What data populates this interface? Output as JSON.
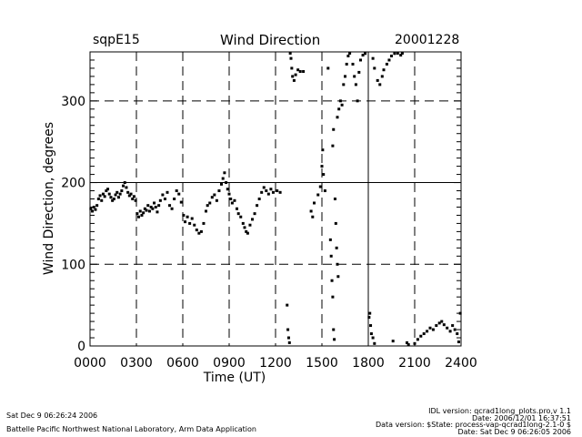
{
  "header": {
    "site": "sqpE15",
    "date": "20001228"
  },
  "chart_data": {
    "type": "scatter",
    "title": "Wind Direction",
    "xlabel": "Time (UT)",
    "ylabel": "Wind Direction, degrees",
    "xlim": [
      0,
      24
    ],
    "ylim": [
      0,
      360
    ],
    "x_ticks": [
      0,
      3,
      6,
      9,
      12,
      15,
      18,
      21,
      24
    ],
    "x_tick_labels": [
      "0000",
      "0300",
      "0600",
      "0900",
      "1200",
      "1500",
      "1800",
      "2100",
      "2400"
    ],
    "y_ticks": [
      0,
      100,
      200,
      300
    ],
    "y_tick_labels": [
      "0",
      "100",
      "200",
      "300"
    ],
    "y_minor_tick_step": 10,
    "grid": {
      "vertical_dashed": [
        3,
        6,
        9,
        12,
        15,
        21
      ],
      "vertical_solid": [
        18
      ],
      "horizontal_dashed": [
        100,
        300
      ],
      "horizontal_solid": [
        200
      ]
    },
    "marker_color": "#000000",
    "points": [
      [
        0.05,
        168
      ],
      [
        0.15,
        165
      ],
      [
        0.25,
        170
      ],
      [
        0.35,
        167
      ],
      [
        0.45,
        172
      ],
      [
        0.55,
        180
      ],
      [
        0.65,
        184
      ],
      [
        0.75,
        178
      ],
      [
        0.85,
        186
      ],
      [
        0.95,
        183
      ],
      [
        1.05,
        190
      ],
      [
        1.15,
        192
      ],
      [
        1.25,
        186
      ],
      [
        1.35,
        182
      ],
      [
        1.45,
        178
      ],
      [
        1.55,
        180
      ],
      [
        1.65,
        185
      ],
      [
        1.75,
        188
      ],
      [
        1.85,
        182
      ],
      [
        1.95,
        186
      ],
      [
        2.05,
        190
      ],
      [
        2.15,
        196
      ],
      [
        2.25,
        200
      ],
      [
        2.35,
        194
      ],
      [
        2.45,
        188
      ],
      [
        2.55,
        184
      ],
      [
        2.65,
        186
      ],
      [
        2.75,
        180
      ],
      [
        2.85,
        183
      ],
      [
        2.95,
        178
      ],
      [
        3.05,
        162
      ],
      [
        3.15,
        158
      ],
      [
        3.25,
        165
      ],
      [
        3.35,
        160
      ],
      [
        3.45,
        163
      ],
      [
        3.55,
        168
      ],
      [
        3.65,
        166
      ],
      [
        3.75,
        172
      ],
      [
        3.85,
        165
      ],
      [
        3.95,
        170
      ],
      [
        4.05,
        168
      ],
      [
        4.15,
        175
      ],
      [
        4.25,
        170
      ],
      [
        4.35,
        164
      ],
      [
        4.45,
        172
      ],
      [
        4.55,
        178
      ],
      [
        4.7,
        185
      ],
      [
        4.85,
        180
      ],
      [
        5.0,
        188
      ],
      [
        5.15,
        172
      ],
      [
        5.3,
        168
      ],
      [
        5.45,
        180
      ],
      [
        5.6,
        190
      ],
      [
        5.75,
        186
      ],
      [
        5.9,
        176
      ],
      [
        6.05,
        160
      ],
      [
        6.15,
        152
      ],
      [
        6.3,
        158
      ],
      [
        6.45,
        150
      ],
      [
        6.6,
        156
      ],
      [
        6.75,
        148
      ],
      [
        6.9,
        142
      ],
      [
        7.05,
        138
      ],
      [
        7.2,
        140
      ],
      [
        7.35,
        150
      ],
      [
        7.5,
        165
      ],
      [
        7.6,
        172
      ],
      [
        7.75,
        175
      ],
      [
        7.9,
        182
      ],
      [
        8.05,
        185
      ],
      [
        8.2,
        178
      ],
      [
        8.35,
        190
      ],
      [
        8.5,
        198
      ],
      [
        8.6,
        205
      ],
      [
        8.7,
        212
      ],
      [
        8.8,
        200
      ],
      [
        8.9,
        192
      ],
      [
        9.0,
        186
      ],
      [
        9.1,
        180
      ],
      [
        9.2,
        175
      ],
      [
        9.35,
        178
      ],
      [
        9.5,
        168
      ],
      [
        9.6,
        162
      ],
      [
        9.75,
        158
      ],
      [
        9.9,
        150
      ],
      [
        10.0,
        145
      ],
      [
        10.1,
        140
      ],
      [
        10.2,
        138
      ],
      [
        10.35,
        148
      ],
      [
        10.5,
        155
      ],
      [
        10.65,
        162
      ],
      [
        10.8,
        172
      ],
      [
        10.95,
        180
      ],
      [
        11.1,
        188
      ],
      [
        11.25,
        194
      ],
      [
        11.4,
        190
      ],
      [
        11.55,
        186
      ],
      [
        11.7,
        192
      ],
      [
        11.85,
        188
      ],
      [
        12.1,
        190
      ],
      [
        12.3,
        188
      ],
      [
        12.75,
        50
      ],
      [
        12.8,
        20
      ],
      [
        12.85,
        10
      ],
      [
        12.9,
        4
      ],
      [
        12.95,
        360
      ],
      [
        13.0,
        352
      ],
      [
        13.05,
        340
      ],
      [
        13.1,
        330
      ],
      [
        13.2,
        325
      ],
      [
        13.3,
        332
      ],
      [
        13.45,
        338
      ],
      [
        13.6,
        336
      ],
      [
        13.8,
        336
      ],
      [
        14.3,
        165
      ],
      [
        14.4,
        158
      ],
      [
        14.5,
        175
      ],
      [
        14.75,
        185
      ],
      [
        14.9,
        195
      ],
      [
        15.0,
        220
      ],
      [
        15.05,
        240
      ],
      [
        15.1,
        210
      ],
      [
        15.2,
        190
      ],
      [
        15.4,
        340
      ],
      [
        15.55,
        130
      ],
      [
        15.6,
        110
      ],
      [
        15.65,
        80
      ],
      [
        15.7,
        60
      ],
      [
        15.75,
        20
      ],
      [
        15.8,
        8
      ],
      [
        15.7,
        245
      ],
      [
        15.75,
        265
      ],
      [
        15.85,
        180
      ],
      [
        15.9,
        150
      ],
      [
        15.95,
        120
      ],
      [
        16.0,
        100
      ],
      [
        16.05,
        85
      ],
      [
        16.0,
        280
      ],
      [
        16.1,
        290
      ],
      [
        16.2,
        300
      ],
      [
        16.3,
        295
      ],
      [
        16.4,
        320
      ],
      [
        16.5,
        330
      ],
      [
        16.6,
        345
      ],
      [
        16.7,
        355
      ],
      [
        16.8,
        360
      ],
      [
        17.0,
        345
      ],
      [
        17.1,
        330
      ],
      [
        17.2,
        320
      ],
      [
        17.3,
        300
      ],
      [
        17.4,
        335
      ],
      [
        17.5,
        350
      ],
      [
        17.65,
        356
      ],
      [
        17.8,
        358
      ],
      [
        18.05,
        35
      ],
      [
        18.1,
        40
      ],
      [
        18.15,
        25
      ],
      [
        18.2,
        15
      ],
      [
        18.3,
        10
      ],
      [
        18.4,
        3
      ],
      [
        18.3,
        352
      ],
      [
        18.4,
        340
      ],
      [
        18.6,
        325
      ],
      [
        18.75,
        320
      ],
      [
        18.9,
        330
      ],
      [
        19.0,
        338
      ],
      [
        19.2,
        345
      ],
      [
        19.35,
        350
      ],
      [
        19.5,
        355
      ],
      [
        19.6,
        6
      ],
      [
        19.7,
        358
      ],
      [
        19.9,
        360
      ],
      [
        20.1,
        356
      ],
      [
        20.2,
        360
      ],
      [
        20.5,
        4
      ],
      [
        20.6,
        1
      ],
      [
        21.0,
        3
      ],
      [
        21.2,
        8
      ],
      [
        21.4,
        12
      ],
      [
        21.6,
        15
      ],
      [
        21.8,
        18
      ],
      [
        22.0,
        22
      ],
      [
        22.2,
        20
      ],
      [
        22.4,
        25
      ],
      [
        22.6,
        28
      ],
      [
        22.75,
        30
      ],
      [
        22.9,
        26
      ],
      [
        23.1,
        22
      ],
      [
        23.3,
        18
      ],
      [
        23.45,
        25
      ],
      [
        23.6,
        20
      ],
      [
        23.75,
        15
      ],
      [
        23.85,
        5
      ],
      [
        23.95,
        40
      ]
    ]
  },
  "footer": {
    "timestamp": "Sat Dec  9 06:26:24 2006",
    "organization": "Battelle Pacific Northwest National Laboratory, Arm Data Application",
    "idl_version": "IDL version: qcrad1long_plots.pro,v 1.1",
    "code_date": "Date: 2006/12/01 16:37:51",
    "data_version": "Data version: $State: process-vap-qcrad1long-2.1-0 $",
    "run_date": "Date: Sat Dec  9 06:26:05 2006"
  }
}
